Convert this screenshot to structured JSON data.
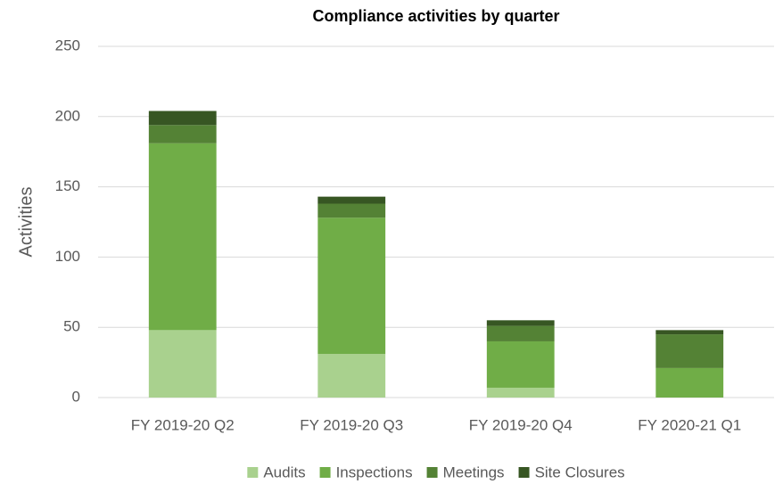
{
  "chart_data": {
    "type": "bar",
    "stacked": true,
    "title": "Compliance activities by quarter",
    "y_label": "Activities",
    "categories": [
      "FY 2019-20 Q2",
      "FY 2019-20 Q3",
      "FY 2019-20 Q4",
      "FY 2020-21 Q1"
    ],
    "series": [
      {
        "name": "Audits",
        "color": "#a9d18e",
        "values": [
          48,
          31,
          7,
          0
        ]
      },
      {
        "name": "Inspections",
        "color": "#70ad47",
        "values": [
          133,
          97,
          33,
          21
        ]
      },
      {
        "name": "Meetings",
        "color": "#548235",
        "values": [
          13,
          10,
          11,
          24
        ]
      },
      {
        "name": "Site Closures",
        "color": "#375623",
        "values": [
          10,
          5,
          4,
          3
        ]
      }
    ],
    "ylim": [
      0,
      250
    ],
    "yticks": [
      0,
      50,
      100,
      150,
      200,
      250
    ],
    "grid": true,
    "legend": "bottom"
  }
}
